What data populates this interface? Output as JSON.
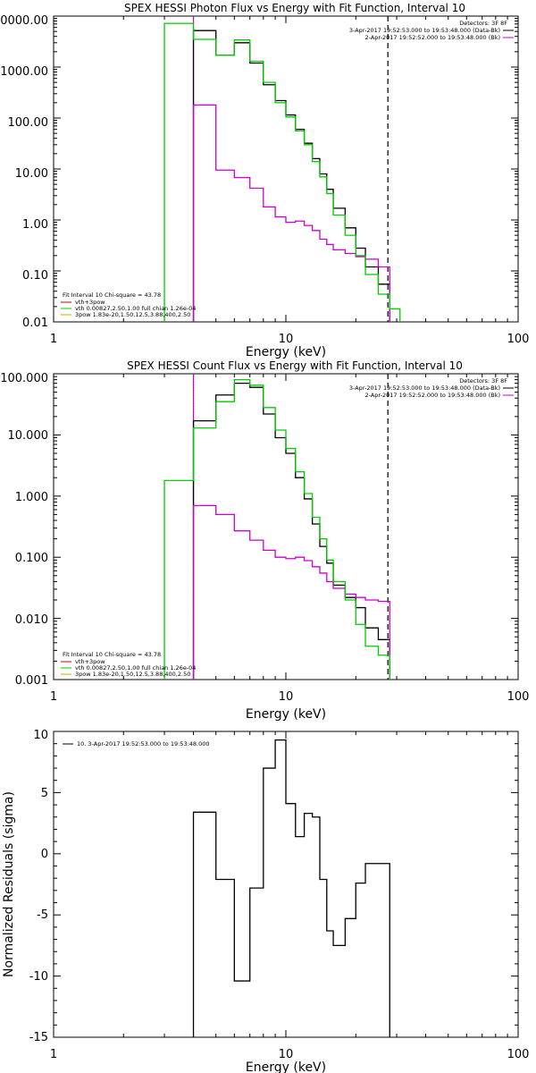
{
  "chart_data": [
    {
      "type": "line",
      "title": "SPEX HESSI Photon Flux vs Energy with Fit Function, Interval 10",
      "xlabel": "Energy (keV)",
      "ylabel": "",
      "x_scale": "log",
      "y_scale": "log",
      "xlim": [
        1,
        100
      ],
      "ylim": [
        0.01,
        10000
      ],
      "x_ticks": [
        {
          "v": 1,
          "label": "1"
        },
        {
          "v": 10,
          "label": "10"
        },
        {
          "v": 100,
          "label": "100"
        }
      ],
      "y_ticks": [
        {
          "v": 0.01,
          "label": "0.01"
        },
        {
          "v": 0.1,
          "label": "0.10"
        },
        {
          "v": 1,
          "label": "1.00"
        },
        {
          "v": 10,
          "label": "10.00"
        },
        {
          "v": 100,
          "label": "100.00"
        },
        {
          "v": 1000,
          "label": "1000.00"
        },
        {
          "v": 10000,
          "label": "10000.00"
        }
      ],
      "edges": [
        3.0,
        4.0,
        5.0,
        6.0,
        7.0,
        8.0,
        9.0,
        10.0,
        11.0,
        12.0,
        13.0,
        14.0,
        15.0,
        16.0,
        18.0,
        20.0,
        22.0,
        25.0,
        28.0,
        31.0
      ],
      "vlines": [
        {
          "x": 4.0,
          "color": "#cc00cc",
          "dash": ""
        },
        {
          "x": 27.5,
          "color": "#000000",
          "dash": "6,4"
        }
      ],
      "series": [
        {
          "name": "",
          "color": "#000000",
          "start": 1,
          "values": [
            5200,
            1700,
            3000,
            1200,
            450,
            220,
            115,
            60,
            32,
            16,
            8,
            4,
            1.7,
            0.7,
            0.28,
            0.12,
            0.055
          ]
        },
        {
          "name": "",
          "color": "#cc00cc",
          "start": 1,
          "values": [
            180,
            9.5,
            6.8,
            4.2,
            1.8,
            1.15,
            0.9,
            0.95,
            0.78,
            0.62,
            0.42,
            0.33,
            0.26,
            0.22,
            0.19,
            0.17,
            0.12
          ]
        },
        {
          "name": "",
          "color": "#00cc00",
          "start": 0,
          "values": [
            7200,
            3500,
            1700,
            3400,
            1300,
            500,
            200,
            105,
            56,
            30,
            14,
            7,
            3.3,
            1.25,
            0.5,
            0.2,
            0.085,
            0.035,
            0.018
          ]
        }
      ],
      "legend_top": {
        "heading": "Detectors: 3F 8F",
        "items": [
          {
            "text": "3-Apr-2017 19:52:53.000 to 19:53:48.000 (Data-Bk)",
            "color": "#000000"
          },
          {
            "text": "2-Apr-2017 19:52:52.000 to 19:53:48.000 (Bk)",
            "color": "#cc00cc"
          }
        ]
      },
      "legend_bottom": {
        "heading": "Fit Interval 10   Chi-square = 43.78",
        "items": [
          {
            "text": "vth+3pow",
            "color": "#cc0000"
          },
          {
            "text": "vth 0.00827,2.50,1.00  full chian 1.26e-04",
            "color": "#00cc00"
          },
          {
            "text": "3pow 1.83e-20,1.50,12.5,3.88,400,2.50",
            "color": "#ccaa00"
          }
        ]
      }
    },
    {
      "type": "line",
      "title": "SPEX HESSI Count Flux vs Energy with Fit Function, Interval 10",
      "xlabel": "Energy (keV)",
      "ylabel": "",
      "x_scale": "log",
      "y_scale": "log",
      "xlim": [
        1,
        100
      ],
      "ylim": [
        0.001,
        100
      ],
      "x_ticks": [
        {
          "v": 1,
          "label": "1"
        },
        {
          "v": 10,
          "label": "10"
        },
        {
          "v": 100,
          "label": "100"
        }
      ],
      "y_ticks": [
        {
          "v": 0.001,
          "label": "0.001"
        },
        {
          "v": 0.01,
          "label": "0.010"
        },
        {
          "v": 0.1,
          "label": "0.100"
        },
        {
          "v": 1,
          "label": "1.000"
        },
        {
          "v": 10,
          "label": "10.000"
        },
        {
          "v": 100,
          "label": "100.000"
        }
      ],
      "edges": [
        3.0,
        4.0,
        5.0,
        6.0,
        7.0,
        8.0,
        9.0,
        10.0,
        11.0,
        12.0,
        13.0,
        14.0,
        15.0,
        16.0,
        18.0,
        20.0,
        22.0,
        25.0,
        28.0,
        31.0
      ],
      "vlines": [
        {
          "x": 4.0,
          "color": "#000000",
          "dash": "1,2"
        },
        {
          "x": 4.0,
          "color": "#cc00cc",
          "dash": ""
        },
        {
          "x": 27.5,
          "color": "#000000",
          "dash": "6,4"
        }
      ],
      "series": [
        {
          "name": "",
          "color": "#000000",
          "start": 1,
          "values": [
            17,
            45,
            70,
            60,
            22,
            9,
            5,
            2,
            0.9,
            0.35,
            0.15,
            0.08,
            0.035,
            0.022,
            0.015,
            0.007,
            0.0045
          ]
        },
        {
          "name": "",
          "color": "#cc00cc",
          "start": 1,
          "values": [
            0.7,
            0.5,
            0.27,
            0.19,
            0.13,
            0.1,
            0.095,
            0.1,
            0.088,
            0.07,
            0.055,
            0.04,
            0.031,
            0.025,
            0.022,
            0.02,
            0.019
          ]
        },
        {
          "name": "",
          "color": "#00cc00",
          "start": 0,
          "values": [
            1.8,
            13,
            35,
            80,
            65,
            28,
            12,
            6,
            2.5,
            1.1,
            0.45,
            0.2,
            0.09,
            0.04,
            0.02,
            0.008,
            0.0035,
            0.0025
          ]
        }
      ],
      "legend_top": {
        "heading": "Detectors: 3F 8F",
        "items": [
          {
            "text": "3-Apr-2017 19:52:53.000 to 19:53:48.000 (Data-Bk)",
            "color": "#000000"
          },
          {
            "text": "2-Apr-2017 19:52:52.000 to 19:53:48.000 (Bk)",
            "color": "#cc00cc"
          }
        ]
      },
      "legend_bottom": {
        "heading": "Fit Interval 10   Chi-square = 43.78",
        "items": [
          {
            "text": "vth+3pow",
            "color": "#cc0000"
          },
          {
            "text": "vth 0.00827,2.50,1.00  full chian 1.26e-04",
            "color": "#00cc00"
          },
          {
            "text": "3pow 1.83e-20,1.50,12.5,3.88,400,2.50",
            "color": "#ccaa00"
          }
        ]
      }
    },
    {
      "type": "line",
      "title": "",
      "xlabel": "Energy (keV)",
      "ylabel": "Normalized Residuals (sigma)",
      "x_scale": "log",
      "y_scale": "linear",
      "xlim": [
        1,
        100
      ],
      "ylim": [
        -15,
        10
      ],
      "x_ticks": [
        {
          "v": 1,
          "label": "1"
        },
        {
          "v": 10,
          "label": "10"
        },
        {
          "v": 100,
          "label": "100"
        }
      ],
      "y_ticks": [
        {
          "v": -15,
          "label": "-15"
        },
        {
          "v": -10,
          "label": "-10"
        },
        {
          "v": -5,
          "label": "-5"
        },
        {
          "v": 0,
          "label": "0"
        },
        {
          "v": 5,
          "label": "5"
        },
        {
          "v": 10,
          "label": "10"
        }
      ],
      "edges": [
        4.0,
        5.0,
        6.0,
        7.0,
        8.0,
        9.0,
        10.0,
        11.0,
        12.0,
        13.0,
        14.0,
        15.0,
        16.0,
        18.0,
        20.0,
        22.0,
        25.0,
        28.0
      ],
      "drop_to_bottom": true,
      "vlines": [],
      "series": [
        {
          "name": "10.  3-Apr-2017 19:52:53.000 to 19:53:48.000",
          "color": "#000000",
          "start": 0,
          "values": [
            3.4,
            -2.1,
            -10.4,
            -2.8,
            7.0,
            9.3,
            4.1,
            1.4,
            3.3,
            3.0,
            -2.1,
            -6.3,
            -7.5,
            -5.3,
            -2.4,
            -0.8,
            -0.8
          ]
        }
      ],
      "legend_top": {
        "heading": "",
        "items": [
          {
            "text": "10.  3-Apr-2017 19:52:53.000 to 19:53:48.000",
            "color": "#000000"
          }
        ]
      }
    }
  ]
}
